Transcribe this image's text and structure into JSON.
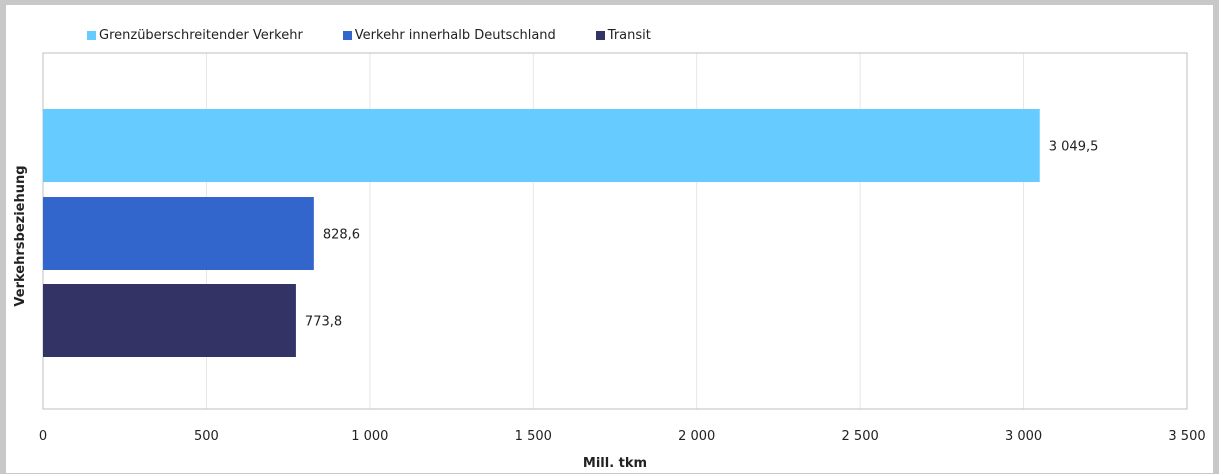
{
  "chart_data": {
    "type": "bar",
    "orientation": "horizontal",
    "categories": [
      "Grenzüberschreitender Verkehr",
      "Verkehr innerhalb Deutschland",
      "Transit"
    ],
    "values": [
      3049.5,
      828.6,
      773.8
    ],
    "value_labels": [
      "3 049,5",
      "828,6",
      "773,8"
    ],
    "colors": [
      "#66ccff",
      "#3366cc",
      "#333366"
    ],
    "xlabel": "Mill. tkm",
    "ylabel": "Verkehrsbeziehung",
    "xlim": [
      0,
      3500
    ],
    "x_ticks": [
      0,
      500,
      1000,
      1500,
      2000,
      2500,
      3000,
      3500
    ],
    "x_tick_labels": [
      "0",
      "500",
      "1 000",
      "1 500",
      "2 000",
      "2 500",
      "3 000",
      "3 500"
    ],
    "grid": true,
    "legend_position": "top-left"
  }
}
